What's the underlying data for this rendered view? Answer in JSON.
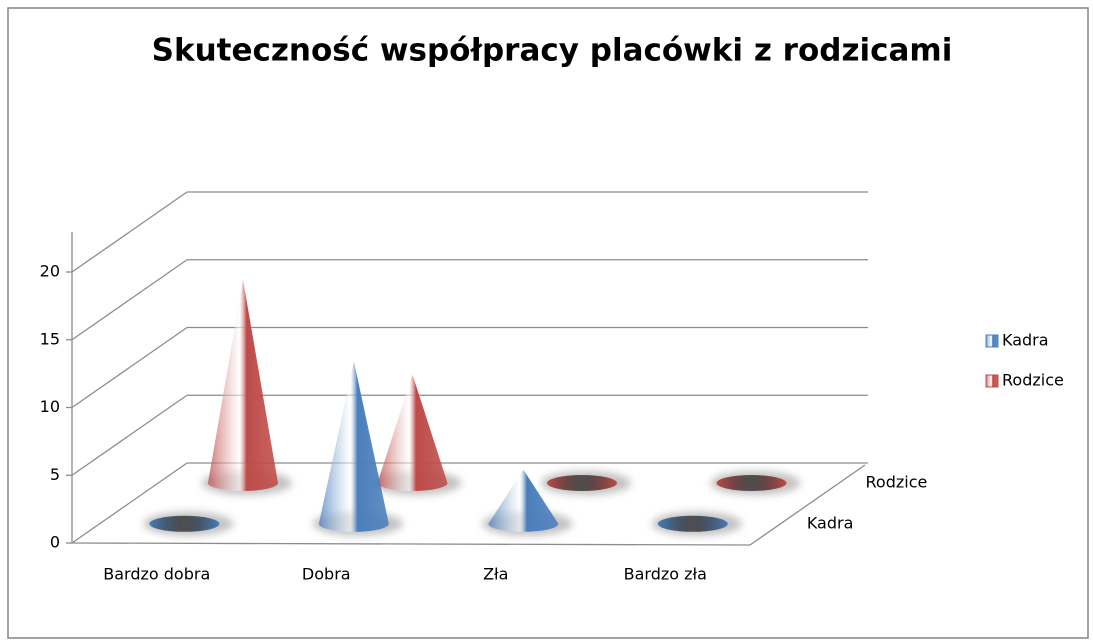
{
  "chart_data": {
    "type": "cone3d",
    "title": "Skuteczność współpracy placówki z rodzicami",
    "categories": [
      "Bardzo dobra",
      "Dobra",
      "Zła",
      "Bardzo zła"
    ],
    "series": [
      {
        "name": "Kadra",
        "color": "#4a7ebb",
        "values": [
          0,
          12,
          4,
          0
        ]
      },
      {
        "name": "Rodzice",
        "color": "#be4b48",
        "values": [
          15,
          8,
          0,
          0
        ]
      }
    ],
    "ylim": [
      0,
      20
    ],
    "yticks": [
      0,
      5,
      10,
      15,
      20
    ],
    "grid": true,
    "legend": "right"
  }
}
